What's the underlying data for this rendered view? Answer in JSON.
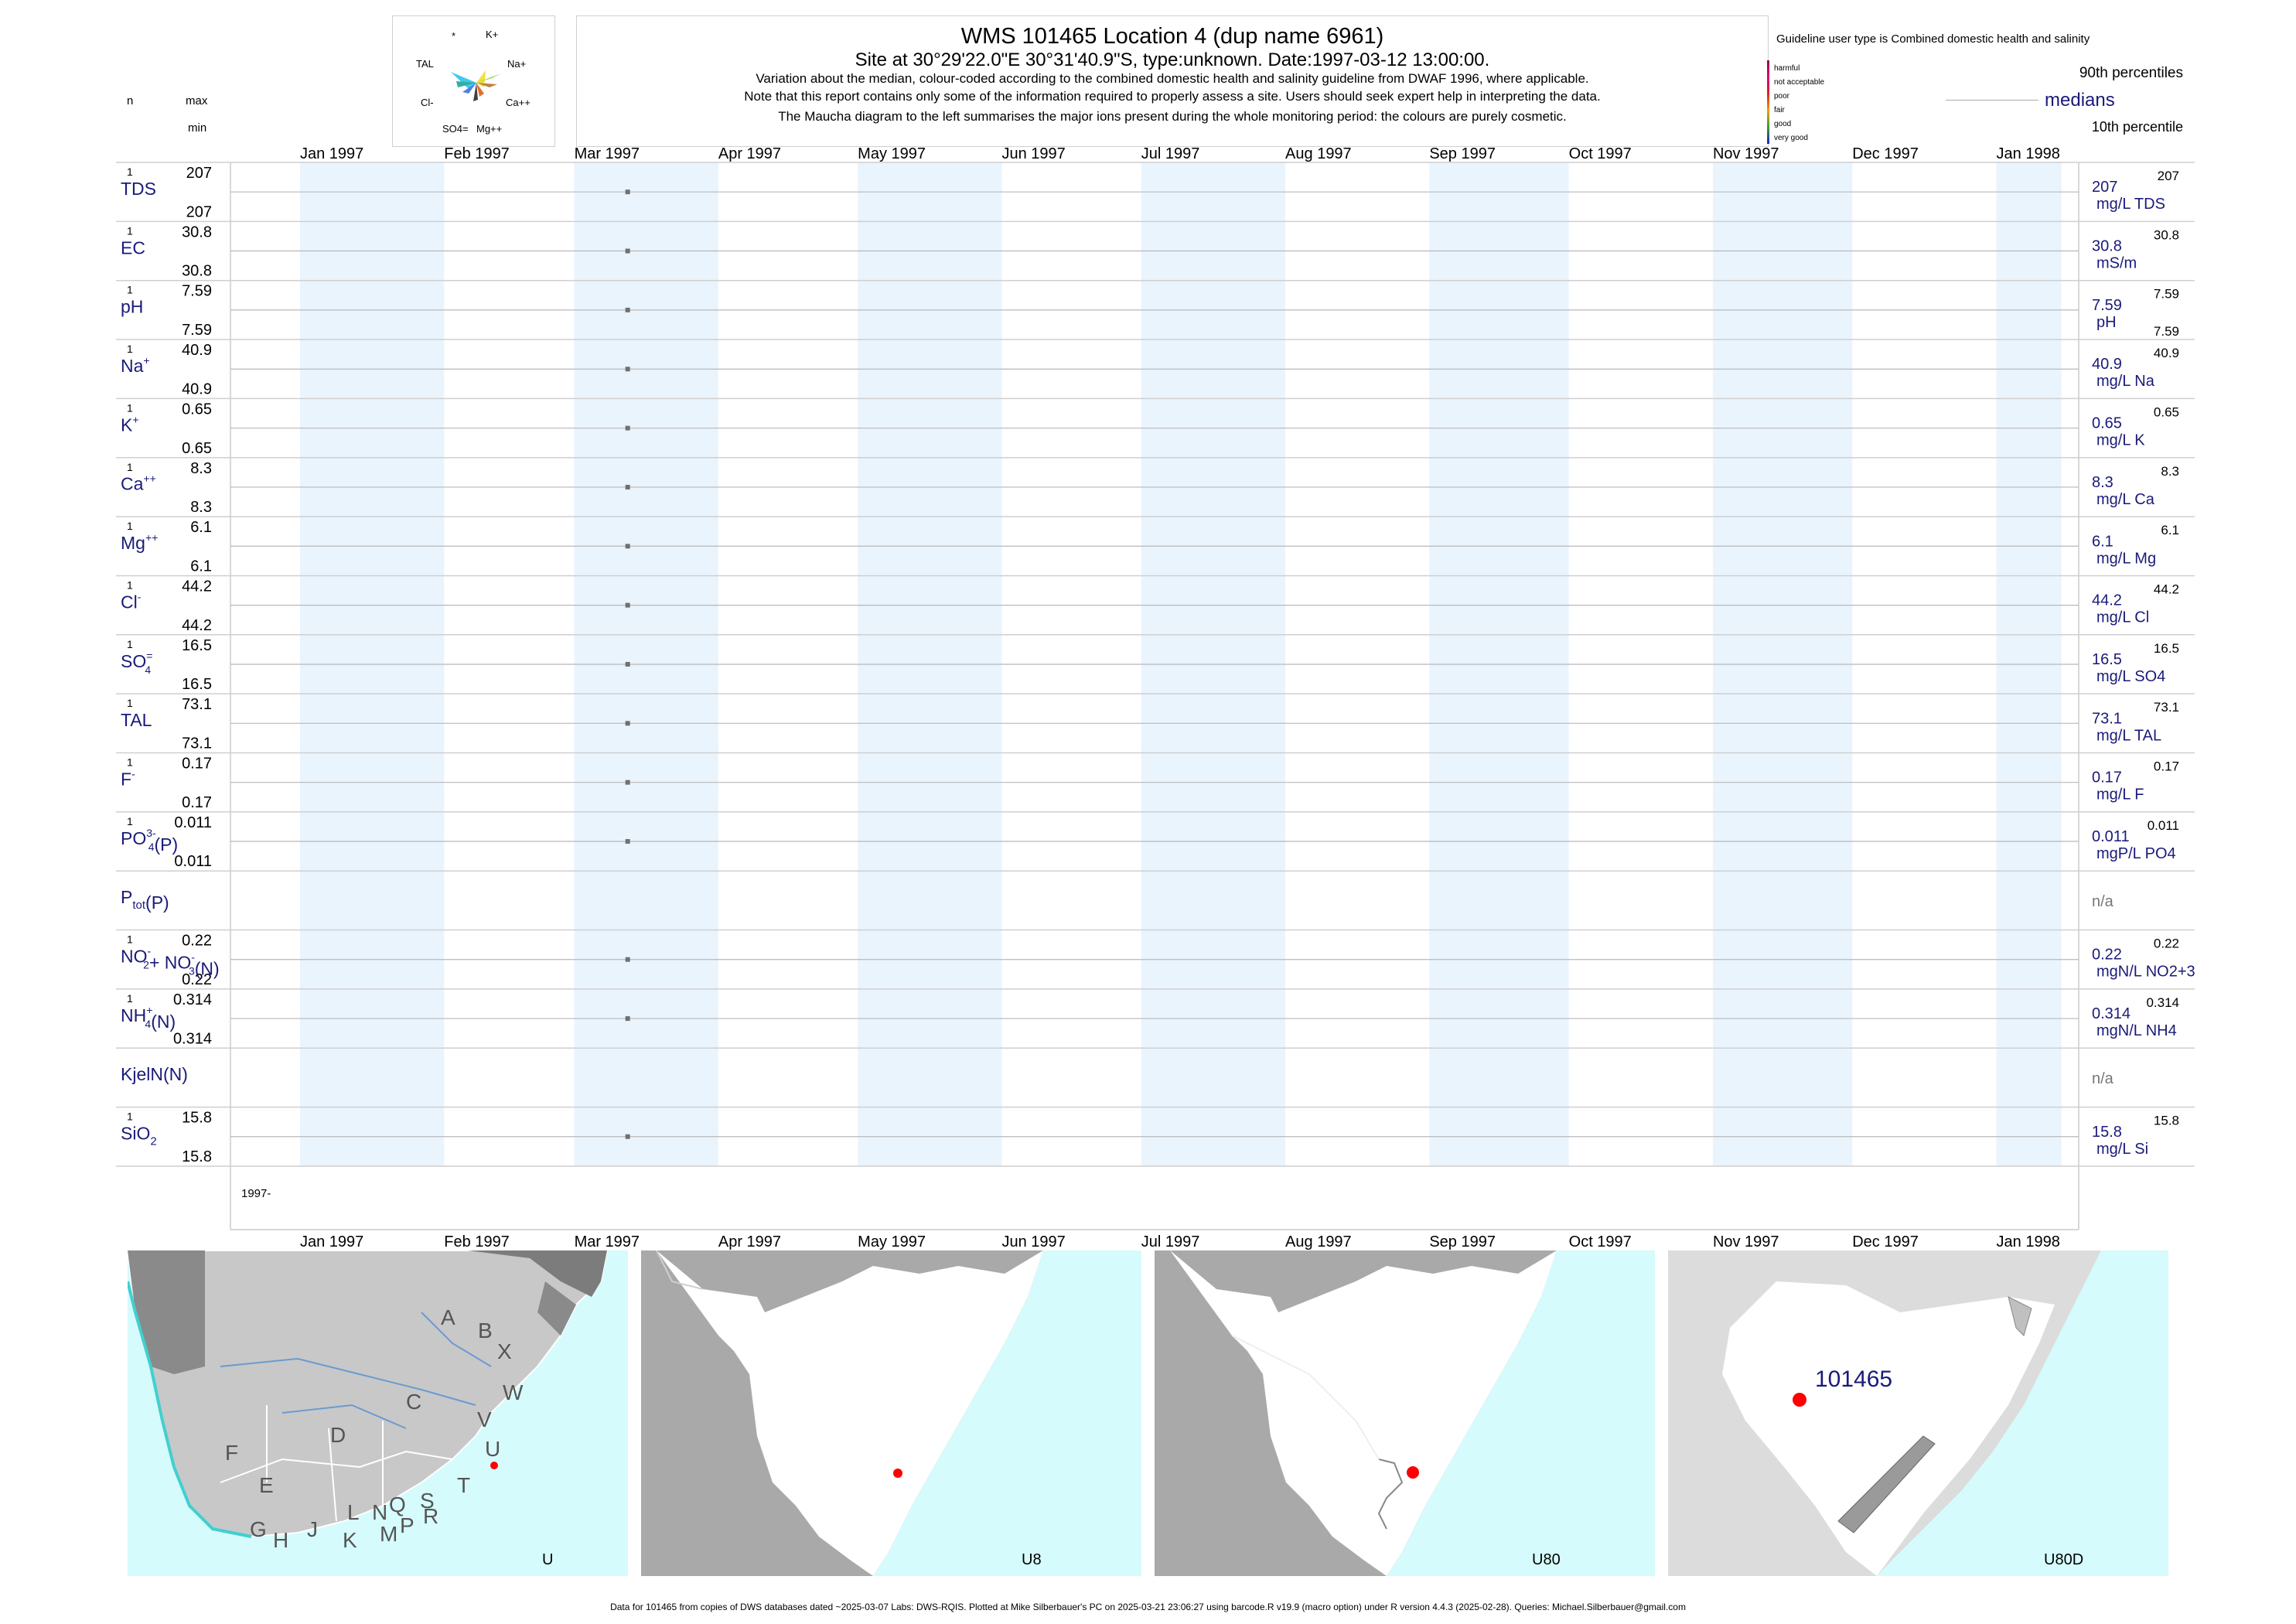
{
  "header": {
    "title": "WMS 101465  Location 4 (dup name 6961)",
    "subtitle": "Site at 30°29'22.0\"E 30°31'40.9\"S, type:unknown. Date:1997-03-12 13:00:00.",
    "note1": "Variation about the median,  colour-coded according to the combined domestic health and salinity guideline from DWAF 1996, where applicable.",
    "note2": "Note that this report contains only some of the information required to properly assess a site. Users should seek expert help in interpreting the data.",
    "note3": "The Maucha diagram to the left summarises the major ions present during the whole monitoring period: the colours are purely cosmetic."
  },
  "left_header": {
    "n": "n",
    "max": "max",
    "min": "min"
  },
  "maucha": {
    "labels": [
      "*",
      "K+",
      "TAL",
      "Na+",
      "Cl-",
      "Ca++",
      "SO4=",
      "Mg++"
    ]
  },
  "legend": {
    "guideline_text": "Guideline user type is Combined domestic health and salinity",
    "categories": [
      "harmful",
      "not acceptable",
      "poor",
      "fair",
      "good",
      "very good"
    ],
    "category_colors": [
      "#8b0a50",
      "#e0007a",
      "#e02020",
      "#f0a000",
      "#30a030",
      "#2020c0"
    ],
    "p90": "90th percentiles",
    "medians": "medians",
    "p10": "10th percentile"
  },
  "months_top": [
    "Jan 1997",
    "Feb 1997",
    "Mar 1997",
    "Apr 1997",
    "May 1997",
    "Jun 1997",
    "Jul 1997",
    "Aug 1997",
    "Sep 1997",
    "Oct 1997",
    "Nov 1997",
    "Dec 1997",
    "Jan 1998"
  ],
  "months_bottom": [
    "Jan 1997",
    "Feb 1997",
    "Mar 1997",
    "Apr 1997",
    "May 1997",
    "Jun 1997",
    "Jul 1997",
    "Aug 1997",
    "Sep 1997",
    "Oct 1997",
    "Nov 1997",
    "Dec 1997",
    "Jan 1998"
  ],
  "year_label": "1997-",
  "chart_data": {
    "type": "scatter",
    "x_range": [
      "1997-01-01",
      "1998-01-15"
    ],
    "sample_date": "1997-03-12",
    "series": [
      {
        "name": "TDS",
        "n": "1",
        "max": "207",
        "min": "207",
        "median": "207",
        "unit": "mg/L TDS",
        "p90": "207",
        "p10": "",
        "value": 207
      },
      {
        "name": "EC",
        "n": "1",
        "max": "30.8",
        "min": "30.8",
        "median": "30.8",
        "unit": "mS/m",
        "p90": "30.8",
        "p10": "",
        "value": 30.8
      },
      {
        "name": "pH",
        "n": "1",
        "max": "7.59",
        "min": "7.59",
        "median": "7.59",
        "unit": "pH",
        "p90": "7.59",
        "p10": "7.59",
        "value": 7.59
      },
      {
        "name": "Na",
        "sup": "+",
        "n": "1",
        "max": "40.9",
        "min": "40.9",
        "median": "40.9",
        "unit": "mg/L Na",
        "p90": "40.9",
        "p10": "",
        "value": 40.9
      },
      {
        "name": "K",
        "sup": "+",
        "n": "1",
        "max": "0.65",
        "min": "0.65",
        "median": "0.65",
        "unit": "mg/L K",
        "p90": "0.65",
        "p10": "",
        "value": 0.65
      },
      {
        "name": "Ca",
        "sup": "++",
        "n": "1",
        "max": "8.3",
        "min": "8.3",
        "median": "8.3",
        "unit": "mg/L Ca",
        "p90": "8.3",
        "p10": "",
        "value": 8.3
      },
      {
        "name": "Mg",
        "sup": "++",
        "n": "1",
        "max": "6.1",
        "min": "6.1",
        "median": "6.1",
        "unit": "mg/L Mg",
        "p90": "6.1",
        "p10": "",
        "value": 6.1
      },
      {
        "name": "Cl",
        "sup": "-",
        "n": "1",
        "max": "44.2",
        "min": "44.2",
        "median": "44.2",
        "unit": "mg/L Cl",
        "p90": "44.2",
        "p10": "",
        "value": 44.2
      },
      {
        "name": "SO",
        "sub": "4",
        "sup": "=",
        "n": "1",
        "max": "16.5",
        "min": "16.5",
        "median": "16.5",
        "unit": "mg/L SO4",
        "p90": "16.5",
        "p10": "",
        "value": 16.5
      },
      {
        "name": "TAL",
        "n": "1",
        "max": "73.1",
        "min": "73.1",
        "median": "73.1",
        "unit": "mg/L TAL",
        "p90": "73.1",
        "p10": "",
        "value": 73.1
      },
      {
        "name": "F",
        "sup": "-",
        "n": "1",
        "max": "0.17",
        "min": "0.17",
        "median": "0.17",
        "unit": "mg/L F",
        "p90": "0.17",
        "p10": "",
        "value": 0.17
      },
      {
        "name": "PO",
        "sub": "4",
        "sup": "3-",
        "suffix": "(P)",
        "n": "1",
        "max": "0.011",
        "min": "0.011",
        "median": "0.011",
        "unit": "mgP/L PO4",
        "p90": "0.011",
        "p10": "",
        "value": 0.011
      },
      {
        "name": "P",
        "sub": "tot",
        "suffix": "(P)",
        "n": "",
        "max": "",
        "min": "",
        "median": "n/a",
        "unit": "",
        "p90": "",
        "p10": "",
        "value": null
      },
      {
        "name": "NO",
        "sub": "2",
        "sup": "-",
        "mid": "+ NO",
        "sub2": "3",
        "sup2": "-",
        "suffix": "(N)",
        "n": "1",
        "max": "0.22",
        "min": "0.22",
        "median": "0.22",
        "unit": "mgN/L NO2+3",
        "p90": "0.22",
        "p10": "",
        "value": 0.22
      },
      {
        "name": "NH",
        "sub": "4",
        "sup": "+",
        "suffix": "(N)",
        "n": "1",
        "max": "0.314",
        "min": "0.314",
        "median": "0.314",
        "unit": "mgN/L NH4",
        "p90": "0.314",
        "p10": "",
        "value": 0.314
      },
      {
        "name": "KjelN(N)",
        "n": "",
        "max": "",
        "min": "",
        "median": "n/a",
        "unit": "",
        "p90": "",
        "p10": "",
        "value": null
      },
      {
        "name": "SiO",
        "sub": "2",
        "n": "1",
        "max": "15.8",
        "min": "15.8",
        "median": "15.8",
        "unit": "mg/L Si",
        "p90": "15.8",
        "p10": "",
        "value": 15.8
      }
    ]
  },
  "maps": {
    "map1": {
      "caption": "U",
      "letters": [
        "A",
        "B",
        "X",
        "W",
        "C",
        "V",
        "D",
        "U",
        "F",
        "T",
        "E",
        "S",
        "R",
        "Q",
        "N",
        "L",
        "P",
        "M",
        "J",
        "K",
        "G",
        "H"
      ]
    },
    "map2": {
      "caption": "U8"
    },
    "map3": {
      "caption": "U80"
    },
    "map4": {
      "caption": "U80D",
      "site": "101465"
    }
  },
  "footer": "Data for 101465 from copies of DWS databases dated ~2025-03-07 Labs: DWS-RQIS. Plotted at Mike Silberbauer's PC on 2025-03-21 23:06:27 using barcode.R v19.9 (macro option) under R version 4.4.3 (2025-02-28). Queries: Michael.Silberbauer@gmail.com"
}
